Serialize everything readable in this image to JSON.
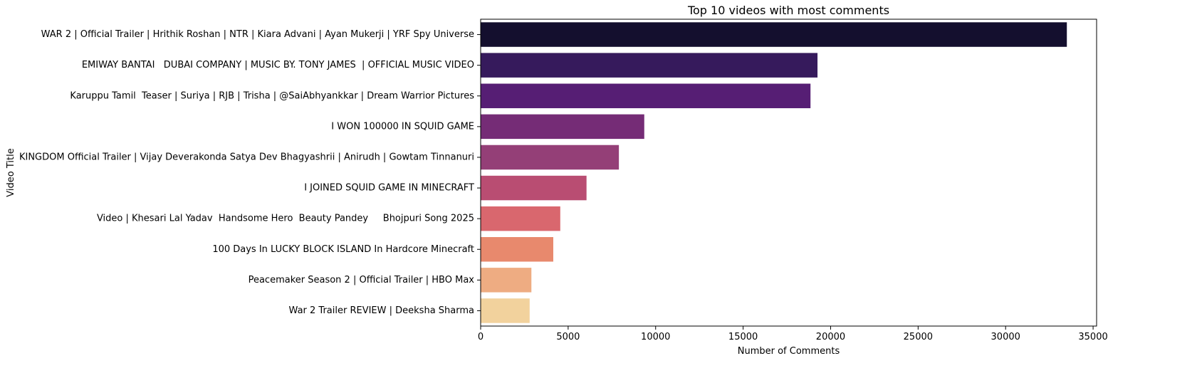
{
  "chart_data": {
    "type": "bar",
    "orientation": "horizontal",
    "title": "Top 10 videos with most comments",
    "xlabel": "Number of Comments",
    "ylabel": "Video Title",
    "xlim": [
      0,
      35200
    ],
    "xticks": [
      0,
      5000,
      10000,
      15000,
      20000,
      25000,
      30000,
      35000
    ],
    "grid": false,
    "legend": "none",
    "categories": [
      "WAR 2 | Official Trailer | Hrithik Roshan | NTR | Kiara Advani | Ayan Mukerji | YRF Spy Universe",
      "EMIWAY BANTAI   DUBAI COMPANY | MUSIC BY. TONY JAMES  | OFFICIAL MUSIC VIDEO",
      "Karuppu Tamil  Teaser | Suriya | RJB | Trisha | @SaiAbhyankkar | Dream Warrior Pictures",
      "I WON 100000 IN SQUID GAME",
      "KINGDOM Official Trailer | Vijay Deverakonda Satya Dev Bhagyashrii | Anirudh | Gowtam Tinnanuri",
      "I JOINED SQUID GAME IN MINECRAFT",
      "Video | Khesari Lal Yadav  Handsome Hero  Beauty Pandey     Bhojpuri Song 2025",
      "100 Days In LUCKY BLOCK ISLAND In Hardcore Minecraft",
      "Peacemaker Season 2 | Official Trailer | HBO Max",
      "War 2 Trailer REVIEW | Deeksha Sharma"
    ],
    "values": [
      33500,
      19250,
      18850,
      9350,
      7900,
      6050,
      4550,
      4150,
      2900,
      2800
    ],
    "colors": [
      "#140f2e",
      "#361a5c",
      "#561e74",
      "#752c76",
      "#943f77",
      "#b94d72",
      "#d9676e",
      "#e8896d",
      "#eeac82",
      "#f2d29d"
    ]
  }
}
